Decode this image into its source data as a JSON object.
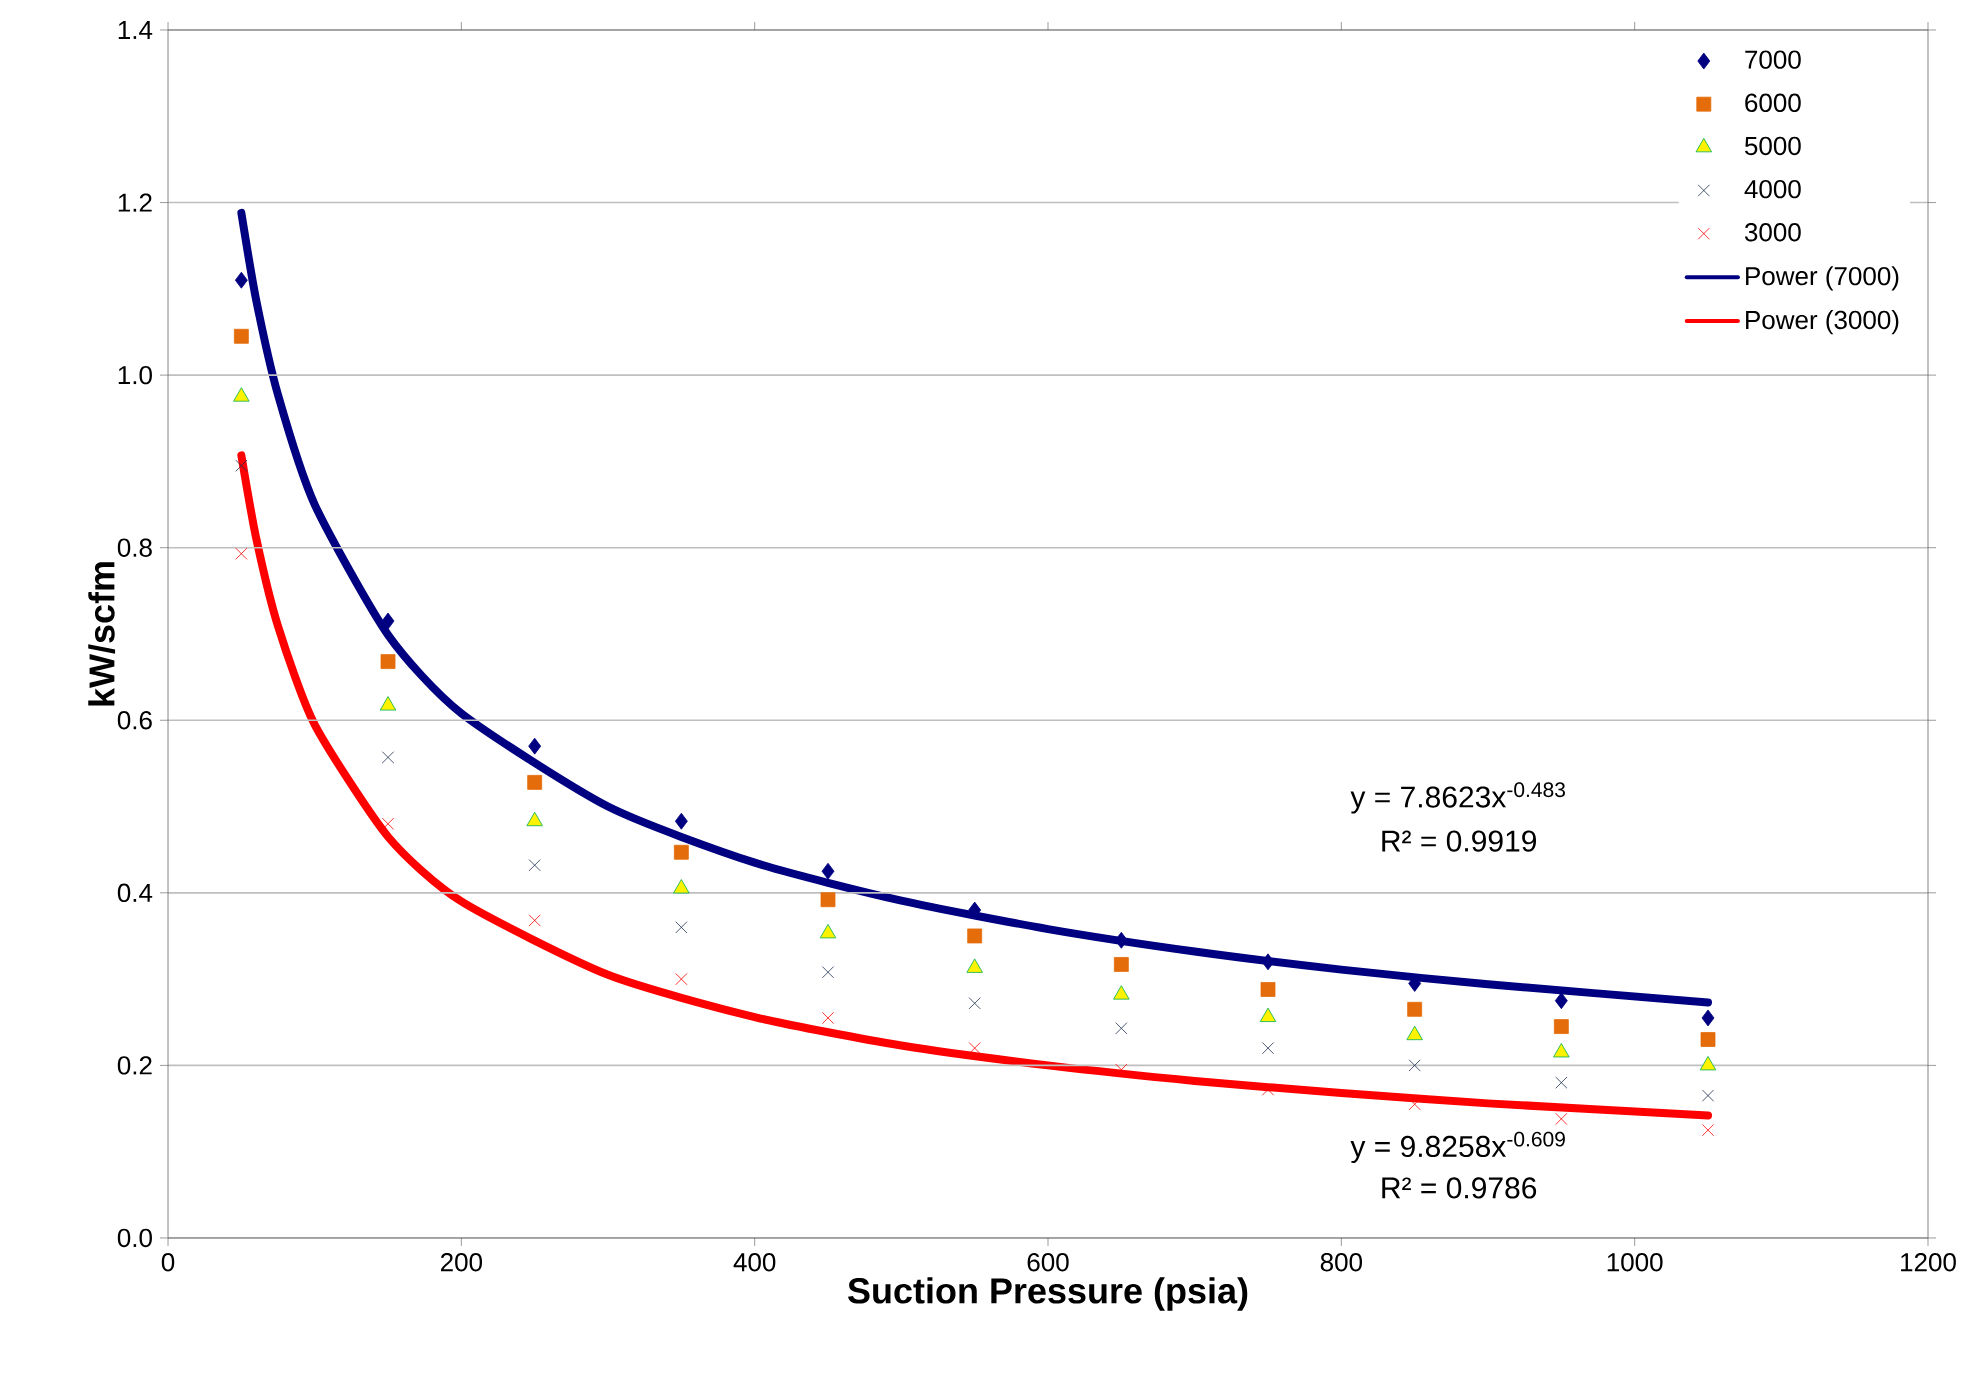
{
  "chart_data": {
    "type": "scatter",
    "xlabel": "Suction Pressure (psia)",
    "ylabel": "kW/scfm",
    "x": [
      50,
      150,
      250,
      350,
      450,
      550,
      650,
      750,
      850,
      950,
      1050
    ],
    "series": [
      {
        "name": "7000",
        "color": "#000080",
        "marker": "diamond",
        "values": [
          1.11,
          0.715,
          0.57,
          0.483,
          0.425,
          0.38,
          0.345,
          0.32,
          0.295,
          0.275,
          0.255
        ]
      },
      {
        "name": "6000",
        "color": "#e46c0a",
        "marker": "square",
        "values": [
          1.045,
          0.668,
          0.528,
          0.447,
          0.392,
          0.35,
          0.317,
          0.288,
          0.265,
          0.245,
          0.23
        ]
      },
      {
        "name": "5000",
        "color": "#00b050",
        "marker": "triangle",
        "values": [
          0.975,
          0.617,
          0.483,
          0.405,
          0.353,
          0.313,
          0.282,
          0.256,
          0.235,
          0.215,
          0.2
        ]
      },
      {
        "name": "4000",
        "color": "#1f3050",
        "marker": "cross",
        "values": [
          0.895,
          0.557,
          0.432,
          0.36,
          0.308,
          0.272,
          0.243,
          0.22,
          0.2,
          0.18,
          0.165
        ]
      },
      {
        "name": "3000",
        "color": "#ff0000",
        "marker": "cross",
        "values": [
          0.793,
          0.48,
          0.368,
          0.3,
          0.255,
          0.22,
          0.195,
          0.172,
          0.155,
          0.138,
          0.125
        ]
      },
      {
        "name": "Power (7000)",
        "type": "line",
        "color": "#000080",
        "marker": "none",
        "x": [
          50,
          60,
          75,
          100,
          150,
          200,
          300,
          400,
          500,
          600,
          700,
          800,
          900,
          1050
        ],
        "values": [
          1.188,
          1.088,
          0.977,
          0.85,
          0.699,
          0.608,
          0.5,
          0.435,
          0.391,
          0.358,
          0.332,
          0.311,
          0.294,
          0.273
        ]
      },
      {
        "name": "Power (3000)",
        "type": "line",
        "color": "#ff0000",
        "marker": "none",
        "x": [
          50,
          60,
          75,
          100,
          150,
          200,
          300,
          400,
          500,
          600,
          700,
          800,
          900,
          1050
        ],
        "values": [
          0.907,
          0.812,
          0.709,
          0.595,
          0.465,
          0.39,
          0.305,
          0.256,
          0.223,
          0.2,
          0.182,
          0.168,
          0.156,
          0.142
        ]
      }
    ],
    "annotations": [
      "y = 7.8623x$^{-0.483}$",
      "R² = 0.9919",
      "y = 9.8258x$^{-0.609}$",
      "R² = 0.9786"
    ],
    "xlim": [
      0,
      1200
    ],
    "xticks": [
      0,
      200,
      400,
      600,
      800,
      1000,
      1200
    ],
    "ylim": [
      0,
      1.4
    ],
    "yticks": [
      {
        "value": 0,
        "label": "0.0"
      },
      {
        "value": 0.2,
        "label": "0.2"
      },
      {
        "value": 0.4,
        "label": "0.4"
      },
      {
        "value": 0.6,
        "label": "0.6"
      },
      {
        "value": 0.8,
        "label": "0.8"
      },
      {
        "value": 1,
        "label": "1.0"
      },
      {
        "value": 1.2,
        "label": "1.2"
      },
      {
        "value": 1.4,
        "label": "1.4"
      }
    ],
    "grid": "y",
    "legend": "top right"
  }
}
